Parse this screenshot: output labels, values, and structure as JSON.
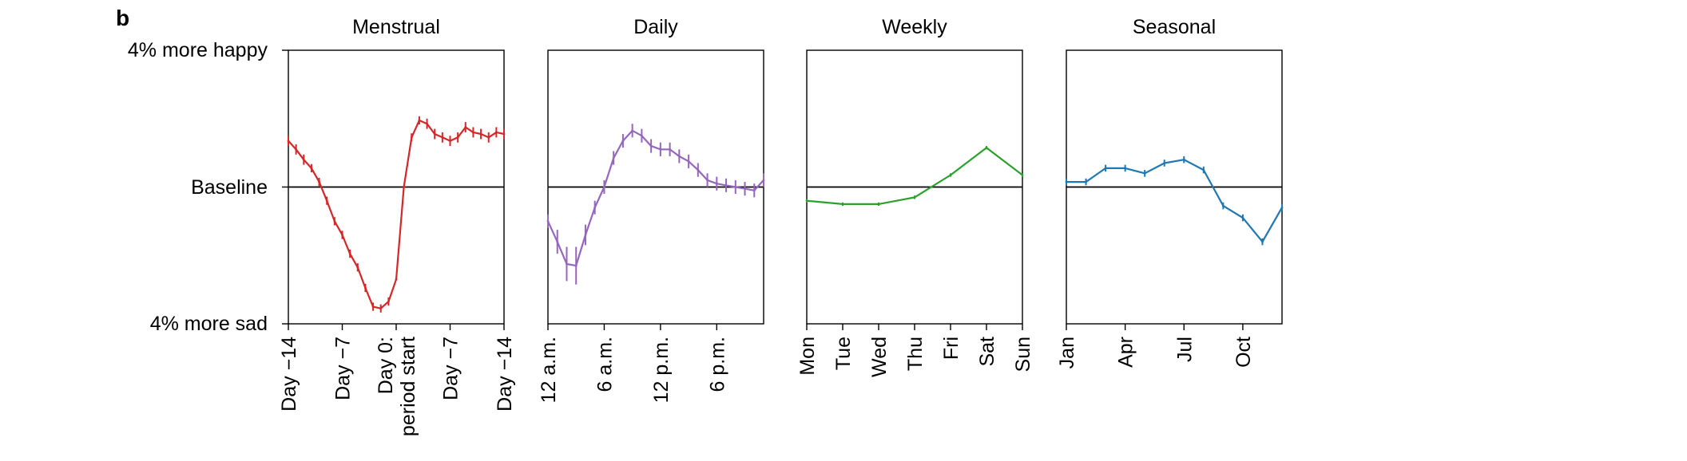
{
  "figure": {
    "panel_label": "b",
    "y_axis_labels": {
      "top": "4% more happy",
      "middle": "Baseline",
      "bottom": "4% more sad"
    }
  },
  "chart_data": [
    {
      "type": "line",
      "title": "Menstrual",
      "color": "#d62728",
      "has_error_bars": true,
      "ylim": [
        -4,
        4
      ],
      "baseline": 0,
      "xlim": [
        0,
        28
      ],
      "xticks": [
        {
          "x": 0,
          "label": "Day −14"
        },
        {
          "x": 7,
          "label": "Day −7"
        },
        {
          "x": 14,
          "label": [
            "Day 0:",
            "period start"
          ]
        },
        {
          "x": 21,
          "label": "Day −7"
        },
        {
          "x": 28,
          "label": "Day −14"
        }
      ],
      "x": [
        0,
        1,
        2,
        3,
        4,
        5,
        6,
        7,
        8,
        9,
        10,
        11,
        12,
        13,
        14,
        15,
        16,
        17,
        18,
        19,
        20,
        21,
        22,
        23,
        24,
        25,
        26,
        27,
        28
      ],
      "y": [
        1.35,
        1.1,
        0.8,
        0.55,
        0.15,
        -0.4,
        -1.0,
        -1.4,
        -1.95,
        -2.35,
        -2.95,
        -3.5,
        -3.55,
        -3.35,
        -2.7,
        0.0,
        1.45,
        1.95,
        1.85,
        1.55,
        1.45,
        1.35,
        1.45,
        1.75,
        1.6,
        1.55,
        1.45,
        1.6,
        1.55
      ],
      "err": [
        0.15,
        0.15,
        0.15,
        0.12,
        0.12,
        0.12,
        0.12,
        0.12,
        0.12,
        0.12,
        0.12,
        0.12,
        0.12,
        0.12,
        0.0,
        0.0,
        0.12,
        0.12,
        0.15,
        0.15,
        0.15,
        0.15,
        0.15,
        0.15,
        0.15,
        0.15,
        0.15,
        0.15,
        0.15
      ]
    },
    {
      "type": "line",
      "title": "Daily",
      "color": "#9467bd",
      "has_error_bars": true,
      "ylim": [
        -4,
        4
      ],
      "baseline": 0,
      "xlim": [
        0,
        23
      ],
      "xticks": [
        {
          "x": 0,
          "label": "12 a.m."
        },
        {
          "x": 6,
          "label": "6 a.m."
        },
        {
          "x": 12,
          "label": "12 p.m."
        },
        {
          "x": 18,
          "label": "6 p.m."
        }
      ],
      "x": [
        0,
        1,
        2,
        3,
        4,
        5,
        6,
        7,
        8,
        9,
        10,
        11,
        12,
        13,
        14,
        15,
        16,
        17,
        18,
        19,
        20,
        21,
        22,
        23
      ],
      "y": [
        -1.0,
        -1.6,
        -2.25,
        -2.3,
        -1.4,
        -0.6,
        0.0,
        0.85,
        1.35,
        1.65,
        1.5,
        1.2,
        1.1,
        1.1,
        0.9,
        0.75,
        0.5,
        0.2,
        0.1,
        0.05,
        0.0,
        -0.05,
        -0.1,
        0.2
      ],
      "err": [
        0.2,
        0.35,
        0.5,
        0.55,
        0.3,
        0.2,
        0.2,
        0.2,
        0.2,
        0.2,
        0.2,
        0.2,
        0.2,
        0.2,
        0.2,
        0.2,
        0.2,
        0.2,
        0.2,
        0.2,
        0.2,
        0.2,
        0.2,
        0.2
      ]
    },
    {
      "type": "line",
      "title": "Weekly",
      "color": "#2ca02c",
      "has_error_bars": true,
      "ylim": [
        -4,
        4
      ],
      "baseline": 0,
      "xlim": [
        0,
        6
      ],
      "xticks": [
        {
          "x": 0,
          "label": "Mon"
        },
        {
          "x": 1,
          "label": "Tue"
        },
        {
          "x": 2,
          "label": "Wed"
        },
        {
          "x": 3,
          "label": "Thu"
        },
        {
          "x": 4,
          "label": "Fri"
        },
        {
          "x": 5,
          "label": "Sat"
        },
        {
          "x": 6,
          "label": "Sun"
        }
      ],
      "x": [
        0,
        1,
        2,
        3,
        4,
        5,
        6
      ],
      "y": [
        -0.4,
        -0.5,
        -0.5,
        -0.3,
        0.35,
        1.15,
        0.35
      ],
      "err": [
        0.05,
        0.05,
        0.05,
        0.05,
        0.05,
        0.05,
        0.05
      ]
    },
    {
      "type": "line",
      "title": "Seasonal",
      "color": "#1f77b4",
      "has_error_bars": true,
      "ylim": [
        -4,
        4
      ],
      "baseline": 0,
      "xlim": [
        0,
        11
      ],
      "xticks": [
        {
          "x": 0,
          "label": "Jan"
        },
        {
          "x": 3,
          "label": "Apr"
        },
        {
          "x": 6,
          "label": "Jul"
        },
        {
          "x": 9,
          "label": "Oct"
        }
      ],
      "x": [
        0,
        1,
        2,
        3,
        4,
        5,
        6,
        7,
        8,
        9,
        10,
        11
      ],
      "y": [
        0.15,
        0.15,
        0.55,
        0.55,
        0.4,
        0.7,
        0.8,
        0.5,
        -0.55,
        -0.9,
        -1.6,
        -0.6
      ],
      "err": [
        0.1,
        0.1,
        0.1,
        0.1,
        0.1,
        0.1,
        0.1,
        0.1,
        0.1,
        0.1,
        0.1,
        0.1
      ]
    }
  ]
}
